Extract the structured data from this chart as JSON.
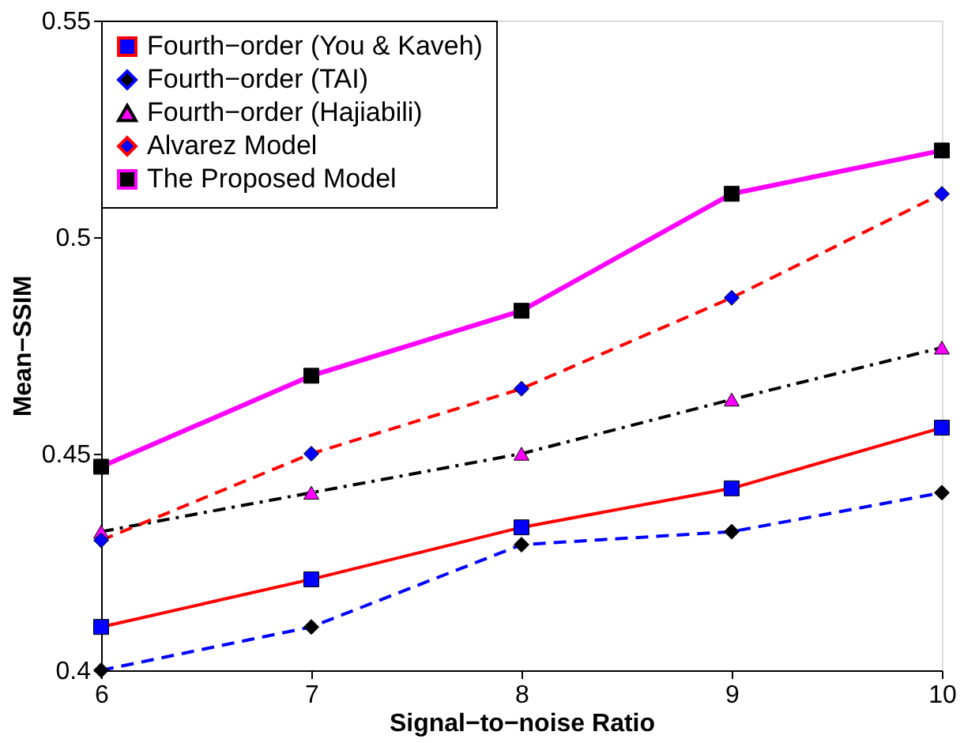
{
  "chart_data": {
    "type": "line",
    "xlabel": "Signal−to−noise Ratio",
    "ylabel": "Mean−SSIM",
    "x": [
      6,
      7,
      8,
      9,
      10
    ],
    "xlim": [
      6,
      10
    ],
    "xticks": [
      6,
      7,
      8,
      9,
      10
    ],
    "ylim": [
      0.4,
      0.55
    ],
    "yticks": [
      0.4,
      0.45,
      0.5,
      0.55
    ],
    "grid": false,
    "legend": "top left",
    "series": [
      {
        "name": "Fourth−order (You & Kaveh)",
        "color": "#ff0000",
        "marker": "square",
        "line_style": "solid",
        "values": [
          0.41,
          0.421,
          0.433,
          0.442,
          0.456
        ]
      },
      {
        "name": "Fourth−order (TAI)",
        "color": "#0000ff",
        "marker": "diamond",
        "line_style": "dashed",
        "values": [
          0.4,
          0.41,
          0.429,
          0.432,
          0.441
        ]
      },
      {
        "name": "Fourth−order (Hajiabili)",
        "color": "#000000",
        "marker": "triangle",
        "line_style": "dashdot",
        "values": [
          0.432,
          0.441,
          0.45,
          0.4625,
          0.4745
        ]
      },
      {
        "name": "Alvarez Model",
        "color": "#ff0000",
        "marker": "diamond",
        "line_style": "dashed",
        "values": [
          0.43,
          0.45,
          0.465,
          0.486,
          0.51
        ]
      },
      {
        "name": "The Proposed Model",
        "color": "#ff00ff",
        "marker": "square",
        "line_style": "solid",
        "values": [
          0.447,
          0.468,
          0.483,
          0.51,
          0.52
        ]
      }
    ]
  }
}
